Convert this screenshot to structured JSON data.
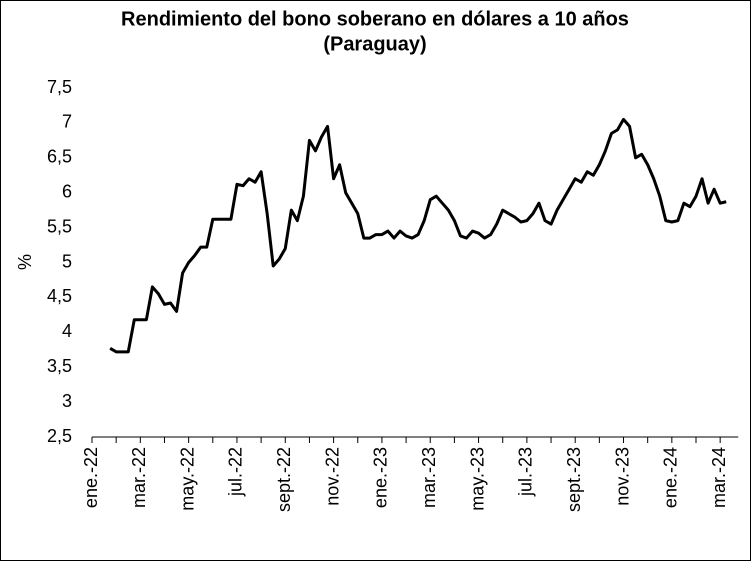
{
  "chart_data": {
    "type": "line",
    "title": [
      "Rendimiento del bono soberano en dólares a 10 años",
      "(Paraguay)"
    ],
    "y_label": "%",
    "categories": [
      "ene.-22",
      null,
      null,
      null,
      null,
      null,
      null,
      null,
      "mar.-22",
      null,
      null,
      null,
      null,
      null,
      null,
      null,
      "may.-22",
      null,
      null,
      null,
      null,
      null,
      null,
      null,
      "jul.-22",
      null,
      null,
      null,
      null,
      null,
      null,
      null,
      "sept.-22",
      null,
      null,
      null,
      null,
      null,
      null,
      null,
      "nov.-22",
      null,
      null,
      null,
      null,
      null,
      null,
      null,
      "ene.-23",
      null,
      null,
      null,
      null,
      null,
      null,
      null,
      "mar.-23",
      null,
      null,
      null,
      null,
      null,
      null,
      null,
      "may.-23",
      null,
      null,
      null,
      null,
      null,
      null,
      null,
      "jul.-23",
      null,
      null,
      null,
      null,
      null,
      null,
      null,
      "sept.-23",
      null,
      null,
      null,
      null,
      null,
      null,
      null,
      "nov.-23",
      null,
      null,
      null,
      null,
      null,
      null,
      null,
      "ene.-24",
      null,
      null,
      null,
      null,
      null,
      null,
      null,
      "mar.-24",
      null,
      null,
      null
    ],
    "series": [
      {
        "name": "Rendimiento",
        "color": "#000000",
        "values": [
          null,
          null,
          null,
          3.77,
          3.72,
          3.72,
          3.72,
          4.18,
          4.18,
          4.18,
          4.65,
          4.55,
          4.4,
          4.42,
          4.3,
          4.85,
          5.0,
          5.1,
          5.22,
          5.22,
          5.62,
          5.62,
          5.62,
          5.62,
          6.12,
          6.1,
          6.2,
          6.15,
          6.3,
          5.7,
          4.95,
          5.05,
          5.2,
          5.75,
          5.6,
          5.95,
          6.75,
          6.6,
          6.8,
          6.95,
          6.2,
          6.4,
          6.0,
          5.85,
          5.7,
          5.35,
          5.35,
          5.4,
          5.4,
          5.45,
          5.35,
          5.45,
          5.38,
          5.35,
          5.4,
          5.6,
          5.9,
          5.95,
          5.85,
          5.75,
          5.6,
          5.38,
          5.35,
          5.45,
          5.42,
          5.35,
          5.4,
          5.55,
          5.75,
          5.7,
          5.65,
          5.58,
          5.6,
          5.7,
          5.85,
          5.6,
          5.55,
          5.75,
          5.9,
          6.05,
          6.2,
          6.15,
          6.3,
          6.25,
          6.4,
          6.6,
          6.85,
          6.9,
          7.05,
          6.95,
          6.5,
          6.55,
          6.4,
          6.2,
          5.95,
          5.6,
          5.58,
          5.6,
          5.85,
          5.8,
          5.95,
          6.2,
          5.85,
          6.05,
          5.85,
          5.87,
          null,
          null
        ]
      }
    ],
    "ylim": [
      2.5,
      7.5
    ],
    "yticks": [
      {
        "value": 2.5,
        "label": "2,5"
      },
      3,
      {
        "value": 3.5,
        "label": "3,5"
      },
      4,
      {
        "value": 4.5,
        "label": "4,5"
      },
      5,
      {
        "value": 5.5,
        "label": "5,5"
      },
      6,
      {
        "value": 6.5,
        "label": "6,5"
      },
      7,
      {
        "value": 7.5,
        "label": "7,5"
      }
    ],
    "grid": false
  }
}
